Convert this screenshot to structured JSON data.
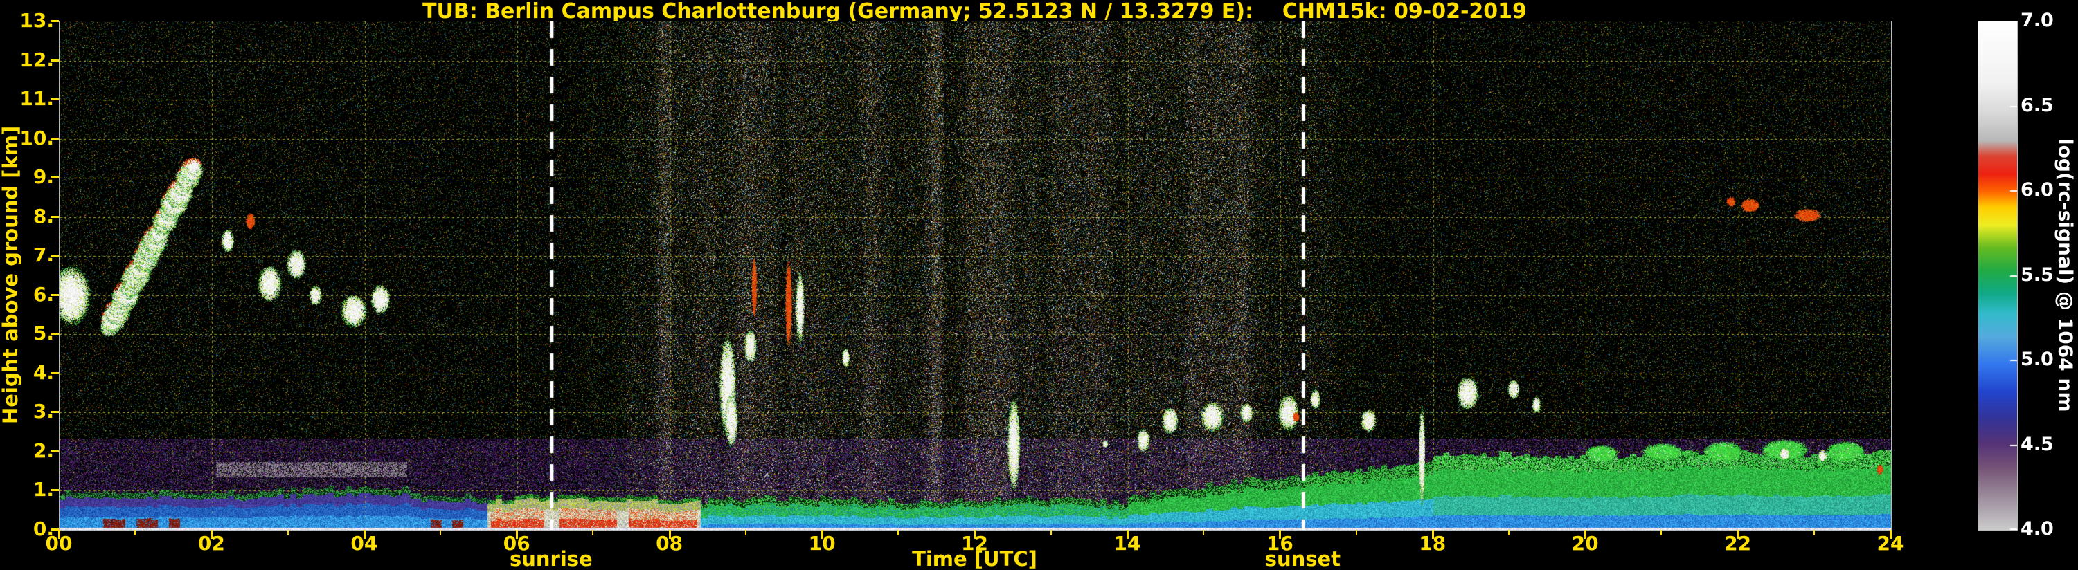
{
  "colors": {
    "background": "#000000",
    "label_text": "#ffe000",
    "colorbar_text": "#ffffff",
    "grid": "#a5a523",
    "annotation_line": "#ffffff",
    "frame": "#b9b9b9"
  },
  "chart_data": {
    "type": "heatmap",
    "title": "TUB: Berlin Campus Charlottenburg (Germany; 52.5123 N / 13.3279 E):    CHM15k: 09-02-2019",
    "station": "Berlin Campus Charlottenburg",
    "country": "Germany",
    "coordinates": "52.5123 N / 13.3279 E",
    "instrument": "CHM15k",
    "date": "09-02-2019",
    "xlabel": "Time [UTC]",
    "ylabel": "Height above ground [km]",
    "xlim": [
      0,
      24
    ],
    "ylim": [
      0,
      13
    ],
    "grid": true,
    "x_tick_values": [
      0,
      2,
      4,
      6,
      8,
      10,
      12,
      14,
      16,
      18,
      20,
      22,
      24
    ],
    "x_tick_labels": [
      "00",
      "02",
      "04",
      "06",
      "08",
      "10",
      "12",
      "14",
      "16",
      "18",
      "20",
      "22",
      "24"
    ],
    "y_tick_values": [
      0,
      1,
      2,
      3,
      4,
      5,
      6,
      7,
      8,
      9,
      10,
      11,
      12,
      13
    ],
    "y_tick_labels": [
      "0.",
      "1.",
      "2.",
      "3.",
      "4.",
      "5.",
      "6.",
      "7.",
      "8.",
      "9.",
      "10.",
      "11.",
      "12.",
      "13."
    ],
    "colorbar": {
      "label": "log(rc-signal) @ 1064 nm",
      "range": [
        4.0,
        7.0
      ],
      "tick_values": [
        7.0,
        6.5,
        6.0,
        5.5,
        5.0,
        4.5,
        4.0
      ],
      "tick_labels": [
        "7.0",
        "6.5",
        "6.0",
        "5.5",
        "5.0",
        "4.5",
        "4.0"
      ],
      "stops": [
        {
          "pos": 0.0,
          "color": "#ffffff"
        },
        {
          "pos": 0.12,
          "color": "#f2f2f2"
        },
        {
          "pos": 0.18,
          "color": "#d9d9d9"
        },
        {
          "pos": 0.235,
          "color": "#b8b8b8"
        },
        {
          "pos": 0.265,
          "color": "#dd4433"
        },
        {
          "pos": 0.3,
          "color": "#ee2211"
        },
        {
          "pos": 0.335,
          "color": "#ff6600"
        },
        {
          "pos": 0.365,
          "color": "#ffcc00"
        },
        {
          "pos": 0.4,
          "color": "#eeee22"
        },
        {
          "pos": 0.445,
          "color": "#66bb22"
        },
        {
          "pos": 0.49,
          "color": "#22aa44"
        },
        {
          "pos": 0.535,
          "color": "#11aa88"
        },
        {
          "pos": 0.575,
          "color": "#33bbcc"
        },
        {
          "pos": 0.62,
          "color": "#55aadd"
        },
        {
          "pos": 0.675,
          "color": "#3377ee"
        },
        {
          "pos": 0.73,
          "color": "#2244cc"
        },
        {
          "pos": 0.78,
          "color": "#333399"
        },
        {
          "pos": 0.83,
          "color": "#553377"
        },
        {
          "pos": 0.88,
          "color": "#775577"
        },
        {
          "pos": 0.93,
          "color": "#998899"
        },
        {
          "pos": 1.0,
          "color": "#cccccc"
        }
      ]
    },
    "annotations": [
      {
        "label": "sunrise",
        "time": 6.45,
        "style": "dashed-white-vertical"
      },
      {
        "label": "sunset",
        "time": 16.3,
        "style": "dashed-white-vertical"
      }
    ],
    "features": {
      "sun_noise": {
        "start": 6.8,
        "peak_start": 8.5,
        "peak_end": 15.5,
        "end": 17.3
      },
      "purple_haze_top_km": 2.35,
      "gray_layer": {
        "t0": 2.05,
        "t1": 4.55,
        "h0": 1.35,
        "h1": 1.75
      },
      "fog_red_intervals": [
        [
          5.65,
          6.35
        ],
        [
          6.55,
          7.3
        ],
        [
          7.45,
          8.35
        ]
      ],
      "boundary_layer": [
        {
          "t0": 0.0,
          "t1": 2.0,
          "top0": 0.95,
          "top1": 0.95,
          "style": "blue-red"
        },
        {
          "t0": 2.0,
          "t1": 4.6,
          "top0": 1.0,
          "top1": 1.05,
          "style": "blue-gray"
        },
        {
          "t0": 4.6,
          "t1": 5.6,
          "top0": 0.95,
          "top1": 0.9,
          "style": "blue"
        },
        {
          "t0": 5.6,
          "t1": 8.4,
          "top0": 0.85,
          "top1": 0.85,
          "style": "fog"
        },
        {
          "t0": 8.4,
          "t1": 14.0,
          "top0": 0.8,
          "top1": 0.75,
          "style": "cyan"
        },
        {
          "t0": 14.0,
          "t1": 16.3,
          "top0": 0.9,
          "top1": 1.4,
          "style": "cyan-green"
        },
        {
          "t0": 16.3,
          "t1": 18.0,
          "top0": 1.4,
          "top1": 1.8,
          "style": "green"
        },
        {
          "t0": 18.0,
          "t1": 24.0,
          "top0": 1.9,
          "top1": 2.0,
          "style": "green-thick"
        }
      ],
      "clouds": [
        {
          "t": 0.15,
          "h": 6.0,
          "rt": 0.3,
          "rh": 0.9,
          "c": "white"
        },
        {
          "type": "streak",
          "t0": 0.65,
          "h0": 5.2,
          "t1": 1.75,
          "h1": 9.3,
          "r": 0.17,
          "c": "white",
          "rf": true
        },
        {
          "t": 2.2,
          "h": 7.4,
          "rt": 0.1,
          "rh": 0.35,
          "c": "white"
        },
        {
          "t": 2.5,
          "h": 7.9,
          "rt": 0.07,
          "rh": 0.25,
          "c": "red"
        },
        {
          "t": 2.75,
          "h": 6.3,
          "rt": 0.18,
          "rh": 0.55,
          "c": "white"
        },
        {
          "t": 3.1,
          "h": 6.8,
          "rt": 0.15,
          "rh": 0.45,
          "c": "white"
        },
        {
          "t": 3.35,
          "h": 6.0,
          "rt": 0.1,
          "rh": 0.3,
          "c": "white"
        },
        {
          "t": 3.85,
          "h": 5.6,
          "rt": 0.2,
          "rh": 0.5,
          "c": "white"
        },
        {
          "t": 4.2,
          "h": 5.9,
          "rt": 0.15,
          "rh": 0.45,
          "c": "white"
        },
        {
          "t": 8.75,
          "h": 3.7,
          "rt": 0.13,
          "rh": 1.5,
          "c": "white"
        },
        {
          "t": 8.8,
          "h": 2.8,
          "rt": 0.1,
          "rh": 0.8,
          "c": "white"
        },
        {
          "t": 9.05,
          "h": 4.7,
          "rt": 0.1,
          "rh": 0.5,
          "c": "white"
        },
        {
          "t": 9.1,
          "h": 6.2,
          "rt": 0.04,
          "rh": 0.9,
          "c": "red"
        },
        {
          "t": 9.55,
          "h": 5.8,
          "rt": 0.05,
          "rh": 1.3,
          "c": "red"
        },
        {
          "t": 9.7,
          "h": 5.7,
          "rt": 0.07,
          "rh": 1.1,
          "c": "white"
        },
        {
          "t": 10.3,
          "h": 4.4,
          "rt": 0.06,
          "rh": 0.3,
          "c": "white"
        },
        {
          "t": 12.5,
          "h": 2.2,
          "rt": 0.1,
          "rh": 1.4,
          "c": "white"
        },
        {
          "t": 13.7,
          "h": 2.2,
          "rt": 0.04,
          "rh": 0.12,
          "c": "white"
        },
        {
          "t": 14.2,
          "h": 2.3,
          "rt": 0.1,
          "rh": 0.35,
          "c": "white"
        },
        {
          "t": 14.55,
          "h": 2.8,
          "rt": 0.13,
          "rh": 0.4,
          "c": "white"
        },
        {
          "t": 15.1,
          "h": 2.9,
          "rt": 0.18,
          "rh": 0.45,
          "c": "white"
        },
        {
          "t": 15.55,
          "h": 3.0,
          "rt": 0.1,
          "rh": 0.3,
          "c": "white"
        },
        {
          "t": 16.1,
          "h": 3.0,
          "rt": 0.16,
          "rh": 0.55,
          "c": "white"
        },
        {
          "t": 16.2,
          "h": 2.9,
          "rt": 0.05,
          "rh": 0.15,
          "c": "red"
        },
        {
          "t": 16.45,
          "h": 3.35,
          "rt": 0.08,
          "rh": 0.3,
          "c": "white"
        },
        {
          "t": 17.15,
          "h": 2.8,
          "rt": 0.12,
          "rh": 0.35,
          "c": "white"
        },
        {
          "t": 17.85,
          "h": 1.9,
          "rt": 0.05,
          "rh": 1.5,
          "c": "white"
        },
        {
          "t": 18.45,
          "h": 3.5,
          "rt": 0.17,
          "rh": 0.5,
          "c": "white"
        },
        {
          "t": 19.05,
          "h": 3.6,
          "rt": 0.09,
          "rh": 0.3,
          "c": "white"
        },
        {
          "t": 19.35,
          "h": 3.2,
          "rt": 0.07,
          "rh": 0.25,
          "c": "white"
        },
        {
          "t": 20.2,
          "h": 1.95,
          "rt": 0.25,
          "rh": 0.25,
          "c": "green"
        },
        {
          "t": 21.0,
          "h": 2.0,
          "rt": 0.3,
          "rh": 0.25,
          "c": "green"
        },
        {
          "t": 21.8,
          "h": 2.0,
          "rt": 0.3,
          "rh": 0.3,
          "c": "green"
        },
        {
          "t": 22.6,
          "h": 2.05,
          "rt": 0.35,
          "rh": 0.3,
          "c": "green"
        },
        {
          "t": 23.4,
          "h": 2.0,
          "rt": 0.3,
          "rh": 0.3,
          "c": "green"
        },
        {
          "t": 22.6,
          "h": 1.95,
          "rt": 0.08,
          "rh": 0.2,
          "c": "white"
        },
        {
          "t": 23.1,
          "h": 1.9,
          "rt": 0.07,
          "rh": 0.18,
          "c": "white"
        },
        {
          "t": 21.9,
          "h": 8.4,
          "rt": 0.07,
          "rh": 0.15,
          "c": "red"
        },
        {
          "t": 22.15,
          "h": 8.3,
          "rt": 0.14,
          "rh": 0.2,
          "c": "red"
        },
        {
          "t": 22.9,
          "h": 8.05,
          "rt": 0.2,
          "rh": 0.2,
          "c": "red"
        },
        {
          "t": 23.85,
          "h": 1.55,
          "rt": 0.05,
          "rh": 0.15,
          "c": "red"
        }
      ]
    }
  }
}
